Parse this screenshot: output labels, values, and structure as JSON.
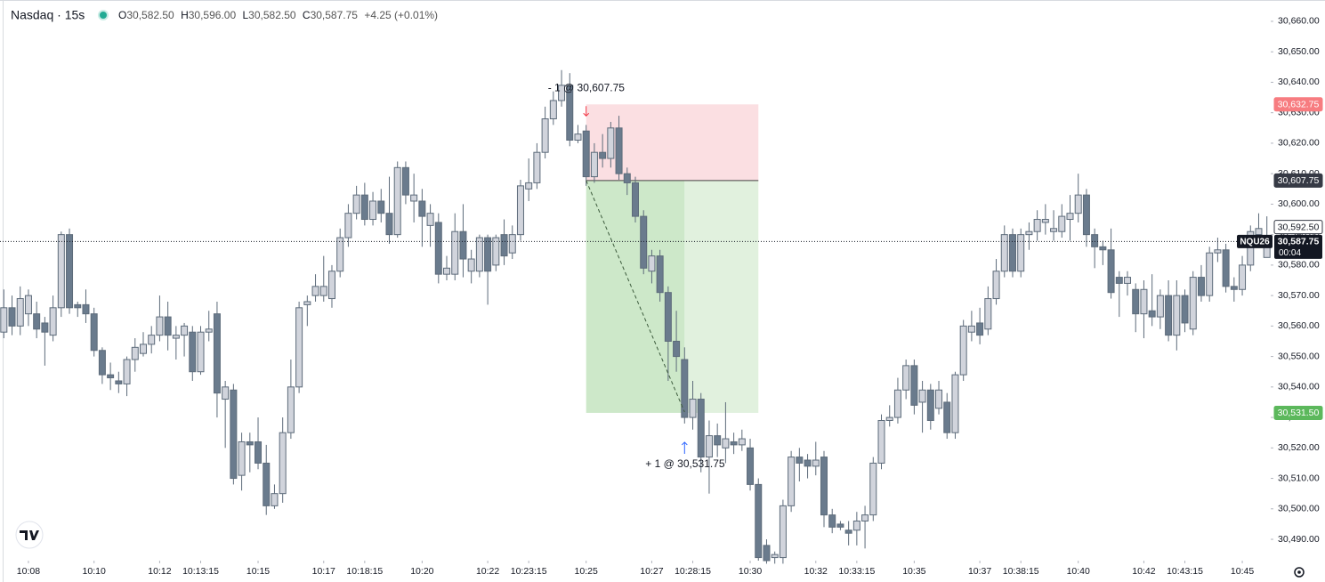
{
  "header": {
    "symbol": "Nasdaq · 15s",
    "ohlc": [
      {
        "label": "O",
        "value": "30,582.50"
      },
      {
        "label": "H",
        "value": "30,596.00"
      },
      {
        "label": "L",
        "value": "30,582.50"
      },
      {
        "label": "C",
        "value": "30,587.75"
      }
    ],
    "change": "+4.25 (+0.01%)"
  },
  "chart_data": {
    "type": "candlestick",
    "x": [
      "10:07:15",
      "10:07:30",
      "10:07:45",
      "10:08:00",
      "10:08:15",
      "10:08:30",
      "10:08:45",
      "10:09:00",
      "10:09:15",
      "10:09:30",
      "10:09:45",
      "10:10:00",
      "10:10:15",
      "10:10:30",
      "10:10:45",
      "10:11:00",
      "10:11:15",
      "10:11:30",
      "10:11:45",
      "10:12:00",
      "10:12:15",
      "10:12:30",
      "10:12:45",
      "10:13:00",
      "10:13:15",
      "10:13:30",
      "10:13:45",
      "10:14:00",
      "10:14:15",
      "10:14:30",
      "10:14:45",
      "10:15:00",
      "10:15:15",
      "10:15:30",
      "10:15:45",
      "10:16:00",
      "10:16:15",
      "10:16:30",
      "10:16:45",
      "10:17:00",
      "10:17:15",
      "10:17:30",
      "10:17:45",
      "10:18:00",
      "10:18:15",
      "10:18:30",
      "10:18:45",
      "10:19:00",
      "10:19:15",
      "10:19:30",
      "10:19:45",
      "10:20:00",
      "10:20:15",
      "10:20:30",
      "10:20:45",
      "10:21:00",
      "10:21:15",
      "10:21:30",
      "10:21:45",
      "10:22:00",
      "10:22:15",
      "10:22:30",
      "10:22:45",
      "10:23:00",
      "10:23:15",
      "10:23:30",
      "10:23:45",
      "10:24:00",
      "10:24:15",
      "10:24:30",
      "10:24:45",
      "10:25:00",
      "10:25:15",
      "10:25:30",
      "10:25:45",
      "10:26:00",
      "10:26:15",
      "10:26:30",
      "10:26:45",
      "10:27:00",
      "10:27:15",
      "10:27:30",
      "10:27:45",
      "10:28:00",
      "10:28:15",
      "10:28:30",
      "10:28:45",
      "10:29:00",
      "10:29:15",
      "10:29:30",
      "10:29:45",
      "10:30:00",
      "10:30:15",
      "10:30:30",
      "10:30:45",
      "10:31:00",
      "10:31:15",
      "10:31:30",
      "10:31:45",
      "10:32:00",
      "10:32:15",
      "10:32:30",
      "10:32:45",
      "10:33:00",
      "10:33:15",
      "10:33:30",
      "10:33:45",
      "10:34:00",
      "10:34:15",
      "10:34:30",
      "10:34:45",
      "10:35:00",
      "10:35:15",
      "10:35:30",
      "10:35:45",
      "10:36:00",
      "10:36:15",
      "10:36:30",
      "10:36:45",
      "10:37:00",
      "10:37:15",
      "10:37:30",
      "10:37:45",
      "10:38:00",
      "10:38:15",
      "10:38:30",
      "10:38:45",
      "10:39:00",
      "10:39:15",
      "10:39:30",
      "10:39:45",
      "10:40:00",
      "10:40:15",
      "10:40:30",
      "10:40:45",
      "10:41:00",
      "10:41:15",
      "10:41:30",
      "10:41:45",
      "10:42:00",
      "10:42:15",
      "10:42:30",
      "10:42:45",
      "10:43:00",
      "10:43:15",
      "10:43:30",
      "10:43:45",
      "10:44:00",
      "10:44:15",
      "10:44:30",
      "10:44:45",
      "10:45:00",
      "10:45:15",
      "10:45:30",
      "10:45:45"
    ],
    "open": [
      30558,
      30566,
      30560,
      30564,
      30564,
      30561,
      30557,
      30566,
      30590,
      30567,
      30567,
      30564,
      30552,
      30544,
      30542,
      30541,
      30549,
      30551,
      30554,
      30557,
      30563,
      30556,
      30557,
      30558,
      30545,
      30558,
      30564,
      30536,
      30539,
      30511,
      30522,
      30522,
      30515,
      30501,
      30505,
      30525,
      30540,
      30567,
      30570,
      30570,
      30569,
      30578,
      30589,
      30597,
      30603,
      30595,
      30601,
      30597,
      30590,
      30612,
      30601,
      30601,
      30593,
      30594,
      30577,
      30577,
      30591,
      30578,
      30578,
      30589,
      30580,
      30590,
      30584,
      30590,
      30605,
      30607,
      30617,
      30628,
      30634,
      30639,
      30621,
      30624,
      30609,
      30617,
      30615,
      30625,
      30610,
      30607,
      30596,
      30578,
      30583,
      30571,
      30555,
      30549,
      30530,
      30536,
      30517,
      30524,
      30520,
      30522,
      30521,
      30520,
      30508,
      30488,
      30484,
      30484,
      30501,
      30517,
      30516,
      30514,
      30517,
      30498,
      30495,
      30493,
      30493,
      30496,
      30498,
      30515,
      30529,
      30530,
      30539,
      30547,
      30535,
      30539,
      30533,
      30535,
      30525,
      30544,
      30558,
      30561,
      30559,
      30569,
      30578,
      30590,
      30578,
      30590,
      30591,
      30594,
      30591,
      30591,
      30595,
      30597,
      30603,
      30590,
      30586,
      30585,
      30576,
      30574,
      30572,
      30564,
      30565,
      30563,
      30570,
      30557,
      30570,
      30559,
      30576,
      30570,
      30584,
      30585,
      30573,
      30572,
      30580,
      30590,
      30582.5
    ],
    "high": [
      30572,
      30570,
      30573,
      30572,
      30568,
      30563,
      30570,
      30591,
      30592,
      30568,
      30572,
      30566,
      30553,
      30548,
      30545,
      30550,
      30556,
      30558,
      30560,
      30570,
      30568,
      30560,
      30561,
      30560,
      30560,
      30565,
      30568,
      30542,
      30541,
      30525,
      30525,
      30530,
      30521,
      30508,
      30530,
      30549,
      30568,
      30570,
      30577,
      30583,
      30580,
      30592,
      30600,
      30606,
      30607,
      30604,
      30605,
      30609,
      30614,
      30614,
      30610,
      30605,
      30600,
      30597,
      30583,
      30597,
      30600,
      30585,
      30590,
      30590,
      30590,
      30595,
      30593,
      30608,
      30615,
      30620,
      30632,
      30637,
      30644,
      30643,
      30626,
      30626,
      30620,
      30623,
      30627,
      30629,
      30612,
      30609,
      30598,
      30585,
      30585,
      30573,
      30565,
      30553,
      30542,
      30538,
      30529,
      30528,
      30535,
      30525,
      30526,
      30523,
      30510,
      30490,
      30486,
      30503,
      30519,
      30520,
      30518,
      30522,
      30519,
      30500,
      30496,
      30496,
      30499,
      30501,
      30517,
      30531,
      30534,
      30543,
      30549,
      30549,
      30542,
      30541,
      30542,
      30538,
      30545,
      30562,
      30565,
      30566,
      30573,
      30582,
      30593,
      30592,
      30592,
      30594,
      30598,
      30600,
      30598,
      30600,
      30603,
      30610,
      30605,
      30592,
      30588,
      30592,
      30578,
      30578,
      30574,
      30575,
      30577,
      30572,
      30575,
      30575,
      30572,
      30578,
      30580,
      30586,
      30589,
      30587,
      30576,
      30583,
      30593,
      30597,
      30596
    ],
    "low": [
      30556,
      30557,
      30557,
      30560,
      30556,
      30547,
      30555,
      30563,
      30564,
      30563,
      30561,
      30550,
      30541,
      30539,
      30538,
      30537,
      30545,
      30550,
      30551,
      30555,
      30552,
      30549,
      30550,
      30542,
      30544,
      30555,
      30530,
      30520,
      30508,
      30506,
      30512,
      30513,
      30498,
      30500,
      30502,
      30523,
      30538,
      30560,
      30568,
      30568,
      30566,
      30576,
      30586,
      30595,
      30593,
      30593,
      30594,
      30587,
      30589,
      30600,
      30594,
      30586,
      30586,
      30574,
      30575,
      30575,
      30576,
      30574,
      30576,
      30567,
      30578,
      30580,
      30582,
      30588,
      30601,
      30605,
      30615,
      30626,
      30632,
      30619,
      30620,
      30606,
      30607,
      30612,
      30612,
      30608,
      30603,
      30594,
      30577,
      30574,
      30568,
      30542,
      30545,
      30528,
      30526,
      30512,
      30505,
      30517,
      30515,
      30518,
      30519,
      30506,
      30483,
      30482,
      30482,
      30482,
      30499,
      30509,
      30510,
      30511,
      30494,
      30492,
      30493,
      30488,
      30488,
      30487,
      30496,
      30513,
      30527,
      30528,
      30536,
      30531,
      30525,
      30526,
      30531,
      30523,
      30523,
      30542,
      30555,
      30554,
      30557,
      30567,
      30576,
      30576,
      30576,
      30585,
      30588,
      30590,
      30588,
      30589,
      30588,
      30594,
      30586,
      30579,
      30580,
      30569,
      30563,
      30570,
      30558,
      30556,
      30560,
      30559,
      30555,
      30552,
      30558,
      30557,
      30568,
      30568,
      30581,
      30571,
      30568,
      30570,
      30578,
      30588,
      30582.5
    ],
    "close": [
      30566,
      30560,
      30569,
      30570,
      30559,
      30558,
      30566,
      30590,
      30566,
      30566,
      30564,
      30552,
      30544,
      30543,
      30541,
      30549,
      30553,
      30554,
      30557,
      30563,
      30557,
      30557,
      30560,
      30545,
      30558,
      30559,
      30538,
      30540,
      30510,
      30522,
      30521,
      30515,
      30501,
      30505,
      30525,
      30540,
      30566,
      30568,
      30573,
      30573,
      30578,
      30589,
      30597,
      30603,
      30595,
      30601,
      30597,
      30590,
      30612,
      30603,
      30603,
      30596,
      30597,
      30577,
      30579,
      30591,
      30582,
      30582,
      30589,
      30578,
      30589,
      30583,
      30590,
      30606,
      30607,
      30617,
      30628,
      30634,
      30639,
      30621,
      30623,
      30609,
      30617,
      30615,
      30625,
      30610,
      30607,
      30596,
      30579,
      30583,
      30571,
      30555,
      30550,
      30530,
      30536,
      30517,
      30524,
      30521,
      30523,
      30521,
      30523,
      30508,
      30484,
      30483,
      30485,
      30501,
      30517,
      30515,
      30514,
      30516,
      30498,
      30494,
      30494,
      30492,
      30496,
      30498,
      30515,
      30529,
      30530,
      30539,
      30547,
      30534,
      30539,
      30529,
      30539,
      30525,
      30544,
      30560,
      30560,
      30557,
      30569,
      30578,
      30590,
      30578,
      30590,
      30591,
      30595,
      30595,
      30592,
      30596,
      30597,
      30603,
      30590,
      30586,
      30585,
      30571,
      30574,
      30576,
      30564,
      30572,
      30563,
      30570,
      30557,
      30570,
      30561,
      30576,
      30570,
      30584,
      30585,
      30573,
      30572,
      30580,
      30591,
      30592,
      30587.75
    ],
    "up_color": "#d1d4dc",
    "down_color": "#6a7b8d",
    "wick_color": "#5d6b7a",
    "xlim": [
      "10:07:08",
      "10:45:52"
    ],
    "xticks": [
      {
        "value": "10:08:00",
        "label": "10:08"
      },
      {
        "value": "10:10:00",
        "label": "10:10"
      },
      {
        "value": "10:12:00",
        "label": "10:12"
      },
      {
        "value": "10:13:15",
        "label": "10:13:15"
      },
      {
        "value": "10:15:00",
        "label": "10:15"
      },
      {
        "value": "10:17:00",
        "label": "10:17"
      },
      {
        "value": "10:18:15",
        "label": "10:18:15"
      },
      {
        "value": "10:20:00",
        "label": "10:20"
      },
      {
        "value": "10:22:00",
        "label": "10:22"
      },
      {
        "value": "10:23:15",
        "label": "10:23:15"
      },
      {
        "value": "10:25:00",
        "label": "10:25"
      },
      {
        "value": "10:27:00",
        "label": "10:27"
      },
      {
        "value": "10:28:15",
        "label": "10:28:15"
      },
      {
        "value": "10:30:00",
        "label": "10:30"
      },
      {
        "value": "10:32:00",
        "label": "10:32"
      },
      {
        "value": "10:33:15",
        "label": "10:33:15"
      },
      {
        "value": "10:35:00",
        "label": "10:35"
      },
      {
        "value": "10:37:00",
        "label": "10:37"
      },
      {
        "value": "10:38:15",
        "label": "10:38:15"
      },
      {
        "value": "10:40:00",
        "label": "10:40"
      },
      {
        "value": "10:42:00",
        "label": "10:42"
      },
      {
        "value": "10:43:15",
        "label": "10:43:15"
      },
      {
        "value": "10:45:00",
        "label": "10:45"
      }
    ],
    "ylim": [
      30483,
      30667
    ],
    "yticks": [
      {
        "value": 30490,
        "label": "30,490.00"
      },
      {
        "value": 30500,
        "label": "30,500.00"
      },
      {
        "value": 30510,
        "label": "30,510.00"
      },
      {
        "value": 30520,
        "label": "30,520.00"
      },
      {
        "value": 30530,
        "label": "30,530.00"
      },
      {
        "value": 30540,
        "label": "30,540.00"
      },
      {
        "value": 30550,
        "label": "30,550.00"
      },
      {
        "value": 30560,
        "label": "30,560.00"
      },
      {
        "value": 30570,
        "label": "30,570.00"
      },
      {
        "value": 30580,
        "label": "30,580.00"
      },
      {
        "value": 30590,
        "label": "30,590.00"
      },
      {
        "value": 30600,
        "label": "30,600.00"
      },
      {
        "value": 30610,
        "label": "30,610.00"
      },
      {
        "value": 30620,
        "label": "30,620.00"
      },
      {
        "value": 30630,
        "label": "30,630.00"
      },
      {
        "value": 30640,
        "label": "30,640.00"
      },
      {
        "value": 30650,
        "label": "30,650.00"
      },
      {
        "value": 30660,
        "label": "30,660.00"
      }
    ],
    "grid": false,
    "position": {
      "start": "10:25:00",
      "exit_time": "10:28:00",
      "end": "10:30:15",
      "entry": {
        "value": 30607.75,
        "label": "30,607.75"
      },
      "stop": {
        "value": 30632.75,
        "label": "30,632.75"
      },
      "target": {
        "value": 30531.5,
        "label": "30,531.50"
      },
      "exit": 30531.75,
      "entry_note": "- 1 @ 30,607.75",
      "exit_note": "+ 1 @ 30,531.75",
      "stop_color": "#fbdfe2",
      "target_color": "#cde8c9",
      "open_target_color": "#e1f1de",
      "stop_label_color": "#f77c80",
      "target_label_color": "#5cb85c"
    },
    "marker": {
      "value": 30592.5,
      "label": "30,592.50"
    },
    "last_price": {
      "value": 30587.75,
      "label": "30,587.75"
    },
    "symbol": "NQU26",
    "countdown": "00:04"
  }
}
